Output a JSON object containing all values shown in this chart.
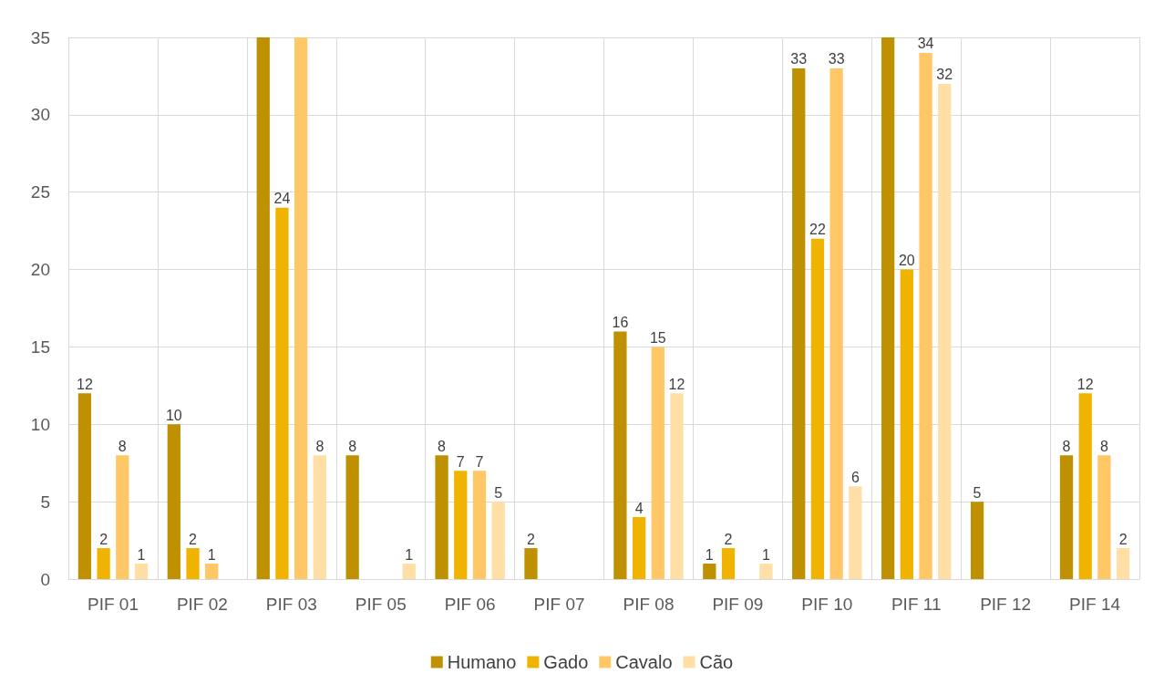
{
  "chart_data": {
    "type": "bar",
    "categories": [
      "PIF 01",
      "PIF 02",
      "PIF 03",
      "PIF 05",
      "PIF 06",
      "PIF 07",
      "PIF 08",
      "PIF 09",
      "PIF 10",
      "PIF 11",
      "PIF 12",
      "PIF 14"
    ],
    "series": [
      {
        "name": "Humano",
        "color": "#bf9000",
        "values": [
          12,
          10,
          35,
          8,
          8,
          2,
          16,
          1,
          33,
          35,
          5,
          8
        ],
        "value_labels": [
          "12",
          "10",
          null,
          "8",
          "8",
          "2",
          "16",
          "1",
          "33",
          null,
          "5",
          "8"
        ]
      },
      {
        "name": "Gado",
        "color": "#f0b400",
        "values": [
          2,
          2,
          24,
          null,
          7,
          null,
          4,
          2,
          22,
          20,
          null,
          12
        ],
        "value_labels": [
          "2",
          "2",
          "24",
          null,
          "7",
          null,
          "4",
          "2",
          "22",
          "20",
          null,
          "12"
        ]
      },
      {
        "name": "Cavalo",
        "color": "#ffc766",
        "values": [
          8,
          1,
          35,
          null,
          7,
          null,
          15,
          null,
          33,
          34,
          null,
          8
        ],
        "value_labels": [
          "8",
          "1",
          null,
          null,
          "7",
          null,
          "15",
          null,
          "33",
          "34",
          null,
          "8"
        ]
      },
      {
        "name": "Cão",
        "color": "#ffdfa6",
        "values": [
          1,
          null,
          8,
          1,
          5,
          null,
          12,
          1,
          6,
          32,
          null,
          2
        ],
        "value_labels": [
          "1",
          null,
          "8",
          "1",
          "5",
          null,
          "12",
          "1",
          "6",
          "32",
          null,
          "2"
        ]
      }
    ],
    "ylim": [
      0,
      35
    ],
    "yticks": [
      0,
      5,
      10,
      15,
      20,
      25,
      30,
      35
    ],
    "grid": true,
    "legend": "bottom"
  }
}
